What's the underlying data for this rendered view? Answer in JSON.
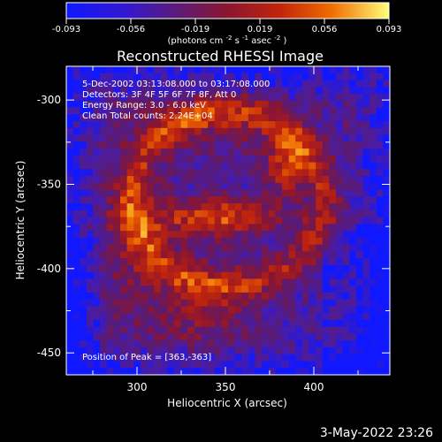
{
  "chart_data": {
    "type": "heatmap",
    "title": "Reconstructed RHESSI Image",
    "xlabel": "Heliocentric X (arcsec)",
    "ylabel": "Heliocentric Y (arcsec)",
    "x_ticks": [
      300,
      350,
      400
    ],
    "y_ticks": [
      -300,
      -350,
      -400,
      -450
    ],
    "colorbar": {
      "min": -0.093,
      "max": 0.093,
      "tick_labels": [
        "-0.093",
        "-0.056",
        "-0.019",
        "0.019",
        "0.056",
        "0.093"
      ],
      "label_parts": [
        "(photons cm",
        "-2",
        " s",
        "-1",
        " asec",
        "-2",
        ")"
      ]
    },
    "annotations": {
      "time_range": "5-Dec-2002 03:13:08.000 to 03:17:08.000",
      "detectors": "Detectors: 3F 4F 5F 6F 7F 8F, Att 0",
      "energy_range": "Energy Range: 3.0 - 6.0 keV",
      "clean": "Clean     Total counts: 2.24E+04",
      "peak": "Position of Peak = [363,-363]"
    },
    "timestamp": "3-May-2022 23:26",
    "axis_ranges": {
      "x": [
        260,
        443
      ],
      "y": [
        -463,
        -280
      ]
    },
    "colormap": [
      "#1018ff",
      "#4b1ca3",
      "#5a1b72",
      "#8b1530",
      "#c0240d",
      "#ef6b00",
      "#ffd23f",
      "#ffff80"
    ]
  }
}
